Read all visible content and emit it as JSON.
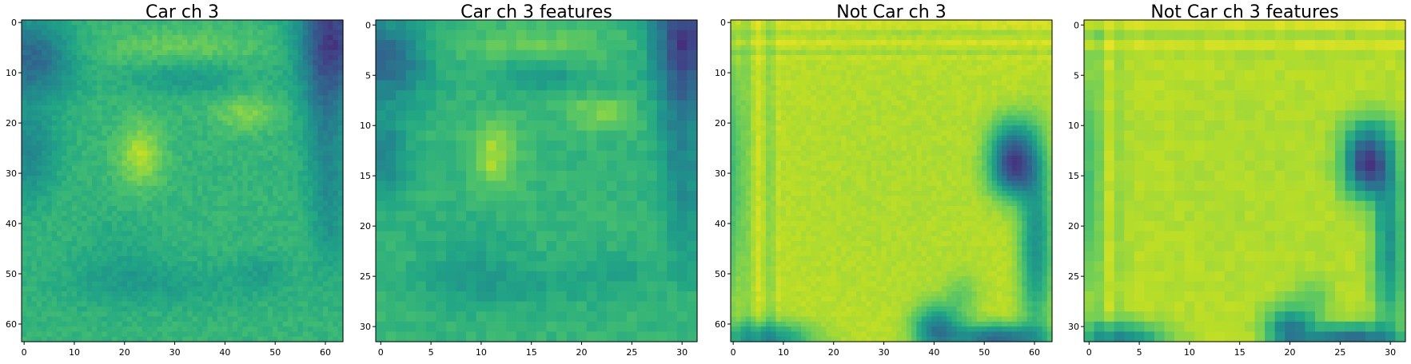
{
  "chart_data": [
    {
      "type": "heatmap",
      "title": "Car ch 3",
      "grid_size": 64,
      "xticks": [
        0,
        10,
        20,
        30,
        40,
        50,
        60
      ],
      "yticks": [
        0,
        10,
        20,
        30,
        40,
        50,
        60
      ],
      "xlim": [
        -0.5,
        63.5
      ],
      "ylim": [
        63.5,
        -0.5
      ],
      "colormap": "viridis",
      "pattern": "car",
      "grid": false
    },
    {
      "type": "heatmap",
      "title": "Car ch 3 features",
      "grid_size": 32,
      "xticks": [
        0,
        5,
        10,
        15,
        20,
        25,
        30
      ],
      "yticks": [
        0,
        5,
        10,
        15,
        20,
        25,
        30
      ],
      "xlim": [
        -0.5,
        31.5
      ],
      "ylim": [
        31.5,
        -0.5
      ],
      "colormap": "viridis",
      "pattern": "car",
      "grid": false
    },
    {
      "type": "heatmap",
      "title": "Not Car ch 3",
      "grid_size": 64,
      "xticks": [
        0,
        10,
        20,
        30,
        40,
        50,
        60
      ],
      "yticks": [
        0,
        10,
        20,
        30,
        40,
        50,
        60
      ],
      "xlim": [
        -0.5,
        63.5
      ],
      "ylim": [
        63.5,
        -0.5
      ],
      "colormap": "viridis",
      "pattern": "notcar",
      "grid": false
    },
    {
      "type": "heatmap",
      "title": "Not Car ch 3 features",
      "grid_size": 32,
      "xticks": [
        0,
        5,
        10,
        15,
        20,
        25,
        30
      ],
      "yticks": [
        0,
        5,
        10,
        15,
        20,
        25,
        30
      ],
      "xlim": [
        -0.5,
        31.5
      ],
      "ylim": [
        31.5,
        -0.5
      ],
      "colormap": "viridis",
      "pattern": "notcar",
      "grid": false
    }
  ]
}
